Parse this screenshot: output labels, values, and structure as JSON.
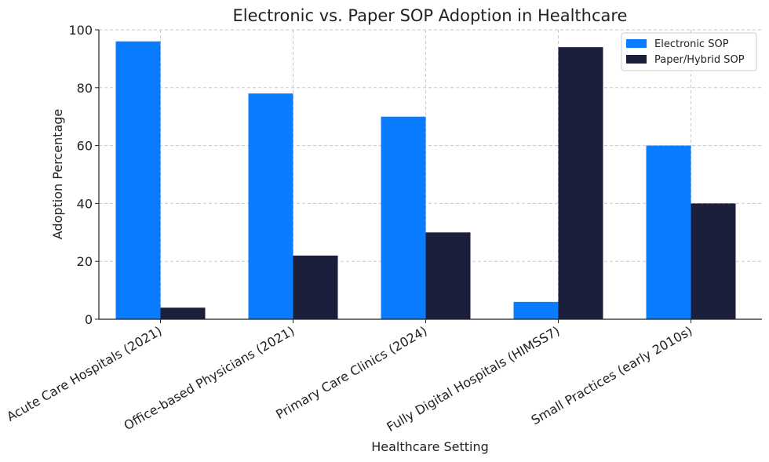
{
  "chart_data": {
    "type": "bar",
    "title": "Electronic vs. Paper SOP Adoption in Healthcare",
    "xlabel": "Healthcare Setting",
    "ylabel": "Adoption Percentage",
    "ylim": [
      0,
      100
    ],
    "yticks": [
      0,
      20,
      40,
      60,
      80,
      100
    ],
    "categories": [
      "Acute Care Hospitals (2021)",
      "Office-based Physicians (2021)",
      "Primary Care Clinics (2024)",
      "Fully Digital Hospitals (HIMSS7)",
      "Small Practices (early 2010s)"
    ],
    "series": [
      {
        "name": "Electronic SOP",
        "color": "#0a7cff",
        "values": [
          96,
          78,
          70,
          6,
          60
        ]
      },
      {
        "name": "Paper/Hybrid SOP",
        "color": "#1b1f3b",
        "values": [
          4,
          22,
          30,
          94,
          40
        ]
      }
    ],
    "grid": true,
    "legend_position": "top-right"
  }
}
